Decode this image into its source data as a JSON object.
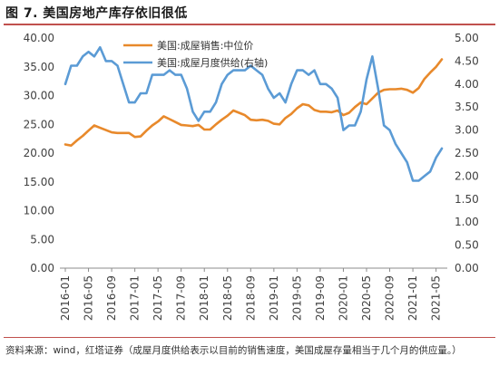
{
  "figure": {
    "title": "图 7. 美国房地产库存依旧很低",
    "note": "资料来源：wind，红塔证券（成屋月度供给表示以目前的销售速度，美国成屋存量相当于几个月的供应量。）"
  },
  "colors": {
    "median_price": "#e8892b",
    "months_supply": "#5b9bd5",
    "rule": "#c0504d"
  },
  "chart_data": {
    "type": "line",
    "x": [
      "2016-01",
      "2016-02",
      "2016-03",
      "2016-04",
      "2016-05",
      "2016-06",
      "2016-07",
      "2016-08",
      "2016-09",
      "2016-10",
      "2016-11",
      "2016-12",
      "2017-01",
      "2017-02",
      "2017-03",
      "2017-04",
      "2017-05",
      "2017-06",
      "2017-07",
      "2017-08",
      "2017-09",
      "2017-10",
      "2017-11",
      "2017-12",
      "2018-01",
      "2018-02",
      "2018-03",
      "2018-04",
      "2018-05",
      "2018-06",
      "2018-07",
      "2018-08",
      "2018-09",
      "2018-10",
      "2018-11",
      "2018-12",
      "2019-01",
      "2019-02",
      "2019-03",
      "2019-04",
      "2019-05",
      "2019-06",
      "2019-07",
      "2019-08",
      "2019-09",
      "2019-10",
      "2019-11",
      "2019-12",
      "2020-01",
      "2020-02",
      "2020-03",
      "2020-04",
      "2020-05",
      "2020-06",
      "2020-07",
      "2020-08",
      "2020-09",
      "2020-10",
      "2020-11",
      "2020-12",
      "2021-01",
      "2021-02",
      "2021-03",
      "2021-04",
      "2021-05",
      "2021-06"
    ],
    "x_ticks": [
      "2016-01",
      "2016-05",
      "2016-09",
      "2017-01",
      "2017-05",
      "2017-09",
      "2018-01",
      "2018-05",
      "2018-09",
      "2019-01",
      "2019-05",
      "2019-09",
      "2020-01",
      "2020-05",
      "2020-09",
      "2021-01",
      "2021-05"
    ],
    "series": [
      {
        "name": "美国:成屋销售:中位价",
        "axis": "left",
        "values": [
          21.5,
          21.3,
          22.2,
          23.0,
          23.9,
          24.8,
          24.4,
          24.0,
          23.6,
          23.5,
          23.5,
          23.5,
          22.8,
          22.9,
          23.9,
          24.8,
          25.5,
          26.4,
          25.9,
          25.4,
          24.9,
          24.8,
          24.7,
          24.9,
          24.1,
          24.1,
          25.0,
          25.8,
          26.5,
          27.4,
          27.0,
          26.6,
          25.8,
          25.7,
          25.8,
          25.6,
          25.1,
          25.0,
          26.1,
          26.8,
          27.8,
          28.5,
          28.3,
          27.5,
          27.2,
          27.2,
          27.1,
          27.4,
          26.6,
          27.0,
          28.0,
          28.8,
          28.5,
          29.5,
          30.5,
          31.0,
          31.1,
          31.1,
          31.2,
          31.0,
          30.5,
          31.3,
          32.9,
          34.0,
          35.0,
          36.3
        ]
      },
      {
        "name": "美国:成屋月度供给(右轴)",
        "axis": "right",
        "values": [
          4.0,
          4.4,
          4.4,
          4.6,
          4.7,
          4.6,
          4.8,
          4.5,
          4.5,
          4.4,
          4.0,
          3.6,
          3.6,
          3.8,
          3.8,
          4.2,
          4.2,
          4.2,
          4.3,
          4.2,
          4.2,
          3.9,
          3.4,
          3.2,
          3.4,
          3.4,
          3.6,
          4.0,
          4.2,
          4.3,
          4.3,
          4.3,
          4.4,
          4.3,
          4.2,
          3.9,
          3.7,
          3.8,
          3.6,
          4.0,
          4.3,
          4.3,
          4.2,
          4.3,
          4.0,
          4.0,
          3.9,
          3.7,
          3.0,
          3.1,
          3.1,
          3.4,
          4.1,
          4.6,
          3.9,
          3.1,
          3.0,
          2.7,
          2.5,
          2.3,
          1.9,
          1.9,
          2.0,
          2.1,
          2.4,
          2.6
        ]
      }
    ],
    "y_left": {
      "min": 0,
      "max": 40,
      "ticks": [
        "0.00",
        "5.00",
        "10.00",
        "15.00",
        "20.00",
        "25.00",
        "30.00",
        "35.00",
        "40.00"
      ]
    },
    "y_right": {
      "min": 0,
      "max": 5,
      "ticks": [
        "0.00",
        "0.50",
        "1.00",
        "1.50",
        "2.00",
        "2.50",
        "3.00",
        "3.50",
        "4.00",
        "4.50",
        "5.00"
      ]
    },
    "legend": "top-center",
    "grid": false
  }
}
